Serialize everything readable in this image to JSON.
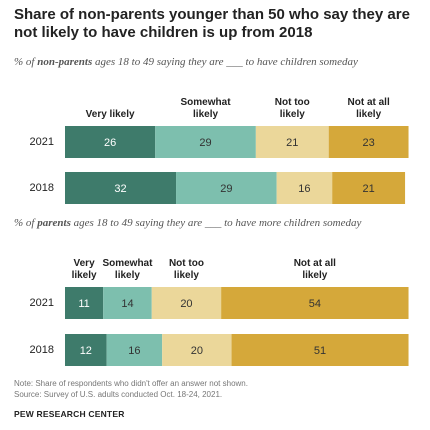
{
  "title": "Share of non-parents younger than 50 who say they are not likely to have children is up from 2018",
  "chart_data": [
    {
      "type": "stacked-bar",
      "subtitle": [
        "% of ",
        "non-parents",
        " ages 18 to 49 saying they are ___ to have children someday"
      ],
      "categories": [
        "2021",
        "2018"
      ],
      "xlim": [
        0,
        100
      ],
      "series": [
        {
          "name": "Very likely",
          "color": "#3e7b6b",
          "values": [
            26,
            32
          ]
        },
        {
          "name": "Somewhat likely",
          "color": "#7dbfae",
          "values": [
            29,
            29
          ]
        },
        {
          "name": "Not too likely",
          "color": "#ebd79a",
          "values": [
            21,
            16
          ]
        },
        {
          "name": "Not at all likely",
          "color": "#d5a83a",
          "values": [
            23,
            21
          ]
        }
      ]
    },
    {
      "type": "stacked-bar",
      "subtitle": [
        "% of ",
        "parents",
        " ages 18 to 49 saying they are ___ to have more children someday"
      ],
      "categories": [
        "2021",
        "2018"
      ],
      "xlim": [
        0,
        100
      ],
      "series": [
        {
          "name": "Very likely",
          "color": "#3e7b6b",
          "values": [
            11,
            12
          ]
        },
        {
          "name": "Somewhat likely",
          "color": "#7dbfae",
          "values": [
            14,
            16
          ]
        },
        {
          "name": "Not too likely",
          "color": "#ebd79a",
          "values": [
            20,
            20
          ]
        },
        {
          "name": "Not at all likely",
          "color": "#d5a83a",
          "values": [
            54,
            51
          ]
        }
      ]
    }
  ],
  "note": "Note: Share of respondents who didn't offer an answer not shown.",
  "source": "Source: Survey of U.S. adults conducted Oct. 18-24, 2021.",
  "credit": "PEW RESEARCH CENTER"
}
